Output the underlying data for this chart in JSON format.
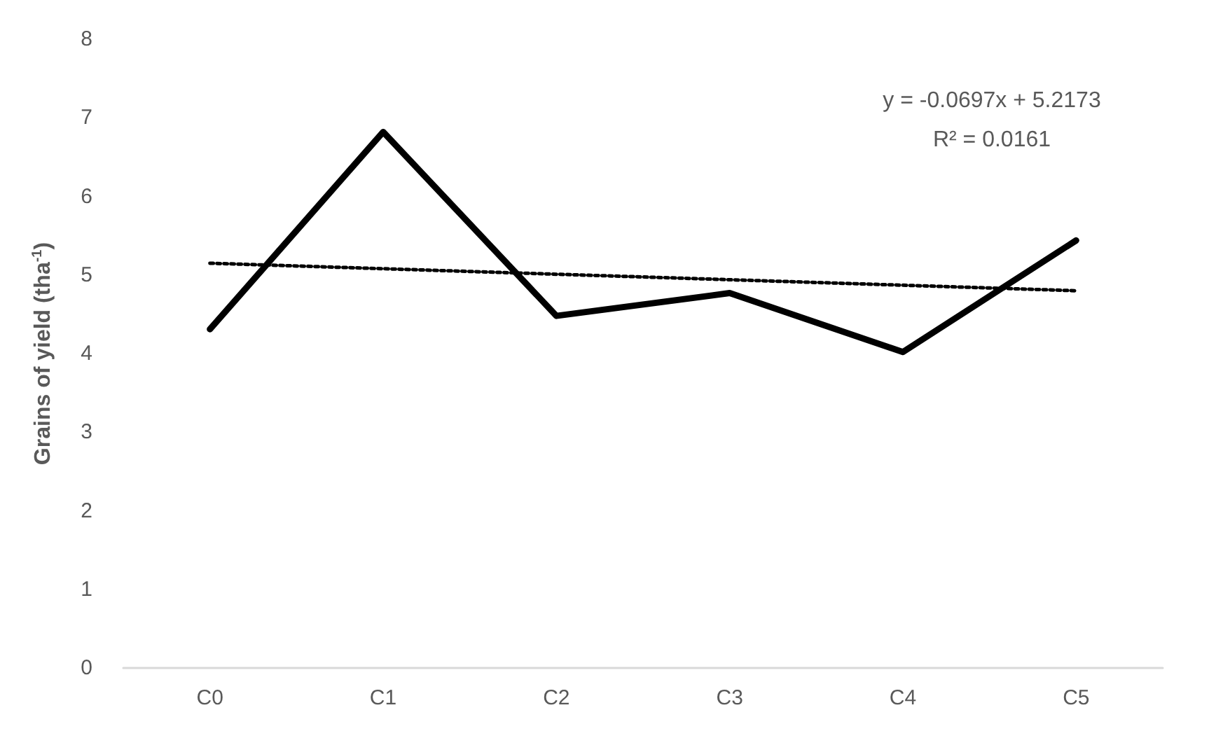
{
  "chart_data": {
    "type": "line",
    "ylabel": "Grains of yield (tha$^{-1}$)",
    "categories": [
      "C0",
      "C1",
      "C2",
      "C3",
      "C4",
      "C5"
    ],
    "series": [
      {
        "color": "#000000",
        "values": [
          4.31,
          6.82,
          4.48,
          4.77,
          4.02,
          5.44
        ],
        "line_style": "solid"
      },
      {
        "color": "#000000",
        "values": [
          5.15,
          5.08,
          5.01,
          4.94,
          4.87,
          4.8
        ],
        "line_style": "dotted"
      }
    ],
    "ylim": [
      0,
      8
    ],
    "yticks": [
      0,
      1,
      2,
      3,
      4,
      5,
      6,
      7,
      8
    ],
    "grid": false,
    "marker": "none",
    "annotations": [
      "y = -0.0697x + 5.2173",
      "R² = 0.0161"
    ]
  }
}
